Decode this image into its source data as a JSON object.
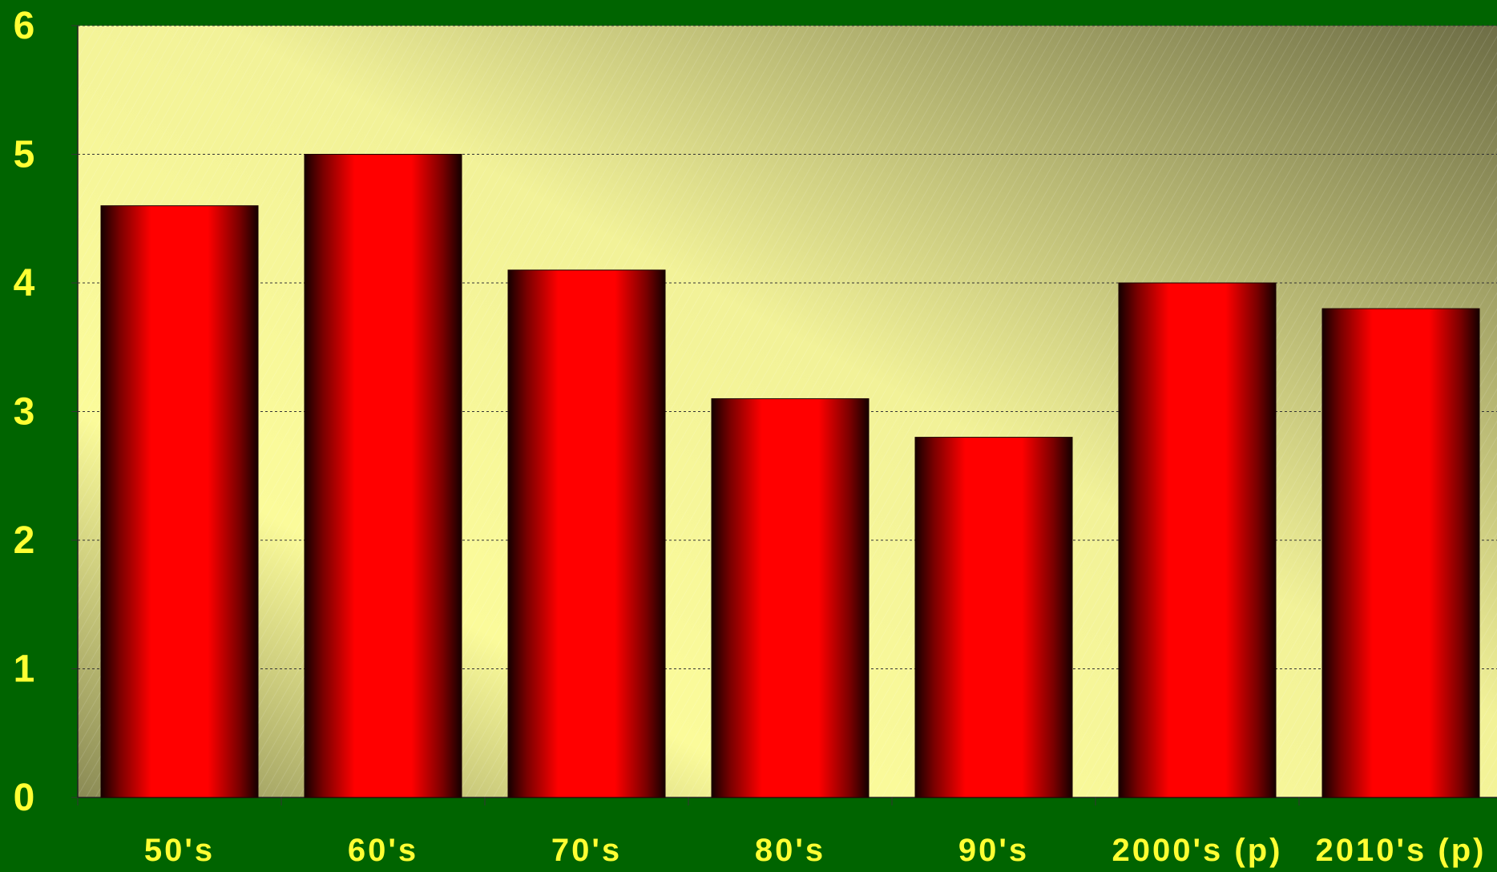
{
  "chart_data": {
    "type": "bar",
    "title": "",
    "xlabel": "",
    "ylabel": "",
    "categories": [
      "50's",
      "60's",
      "70's",
      "80's",
      "90's",
      "2000's (p)",
      "2010's (p)"
    ],
    "values": [
      4.6,
      5.0,
      4.1,
      3.1,
      2.8,
      4.0,
      3.8
    ],
    "ylim": [
      0,
      6
    ],
    "yticks": [
      0,
      1,
      2,
      3,
      4,
      5,
      6
    ],
    "grid": true,
    "legend": "none"
  },
  "colors": {
    "page_background": "#006400",
    "plot_background_light": "#ffff99",
    "plot_background_dark": "#6e6e46",
    "bar_fill": "#ff0000",
    "bar_edge": "#1a0000",
    "tick_label": "#ffff33",
    "gridline": "#333333"
  }
}
